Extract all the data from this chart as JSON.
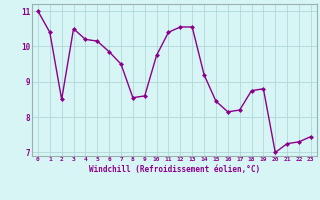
{
  "x": [
    0,
    1,
    2,
    3,
    4,
    5,
    6,
    7,
    8,
    9,
    10,
    11,
    12,
    13,
    14,
    15,
    16,
    17,
    18,
    19,
    20,
    21,
    22,
    23
  ],
  "y": [
    11.0,
    10.4,
    8.5,
    10.5,
    10.2,
    10.15,
    9.85,
    9.5,
    8.55,
    8.6,
    9.75,
    10.4,
    10.55,
    10.55,
    9.2,
    8.45,
    8.15,
    8.2,
    8.75,
    8.8,
    7.0,
    7.25,
    7.3,
    7.45
  ],
  "line_color": "#8B008B",
  "marker": "D",
  "marker_size": 2.0,
  "linewidth": 1.0,
  "bg_color": "#d8f5f5",
  "grid_color": "#b0d8d8",
  "xlabel": "Windchill (Refroidissement éolien,°C)",
  "xlabel_color": "#8B008B",
  "tick_color": "#8B008B",
  "ylim": [
    7,
    11
  ],
  "yticks": [
    7,
    8,
    9,
    10,
    11
  ],
  "xticks": [
    0,
    1,
    2,
    3,
    4,
    5,
    6,
    7,
    8,
    9,
    10,
    11,
    12,
    13,
    14,
    15,
    16,
    17,
    18,
    19,
    20,
    21,
    22,
    23
  ],
  "xtick_labels": [
    "0",
    "1",
    "2",
    "3",
    "4",
    "5",
    "6",
    "7",
    "8",
    "9",
    "10",
    "11",
    "12",
    "13",
    "14",
    "15",
    "16",
    "17",
    "18",
    "19",
    "20",
    "21",
    "22",
    "23"
  ]
}
